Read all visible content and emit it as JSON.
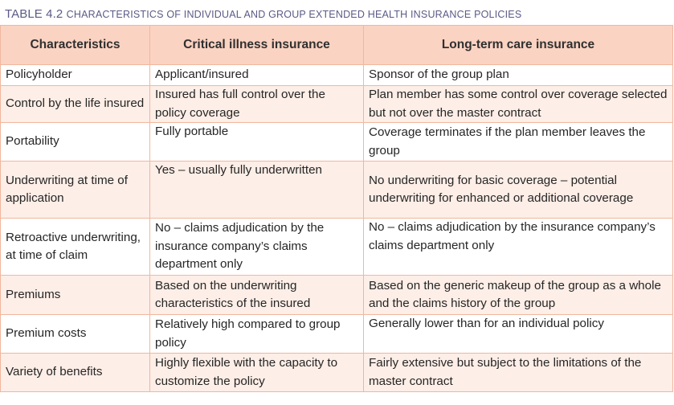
{
  "caption": {
    "number": "TABLE 4.2",
    "title": "Characteristics of individual and group extended health insurance policies"
  },
  "columns": [
    "Characteristics",
    "Critical illness insurance",
    "Long-term care insurance"
  ],
  "rows": [
    [
      "Policyholder",
      "Applicant/insured",
      "Sponsor of the group plan"
    ],
    [
      "Control by the life insured",
      "Insured has full control over the policy coverage",
      "Plan member has some control over coverage selected but not over the master contract"
    ],
    [
      "Portability",
      "Fully portable",
      "Coverage terminates if the plan member leaves the group"
    ],
    [
      "Underwriting at time of application",
      "Yes – usually fully underwritten",
      "No underwriting for basic coverage – potential underwriting for enhanced or additional coverage"
    ],
    [
      "Retroactive underwriting, at time of claim",
      "No – claims adjudication by the insurance company’s claims department only",
      "No – claims adjudication by the insurance company’s claims department only"
    ],
    [
      "Premiums",
      "Based on the underwriting characteristics of the insured",
      "Based on the generic makeup of the group as a whole and the claims history of the group"
    ],
    [
      "Premium costs",
      "Relatively high compared to group policy",
      "Generally lower than for an individual policy"
    ],
    [
      "Variety of benefits",
      "Highly flexible with the capacity to customize the policy",
      "Fairly extensive but subject to the limitations of the master contract"
    ]
  ],
  "colors": {
    "header_bg": "#fbd3c2",
    "stripe_bg": "#fdeee7",
    "border": "#f1b79d",
    "caption_text": "#5b5a86"
  }
}
